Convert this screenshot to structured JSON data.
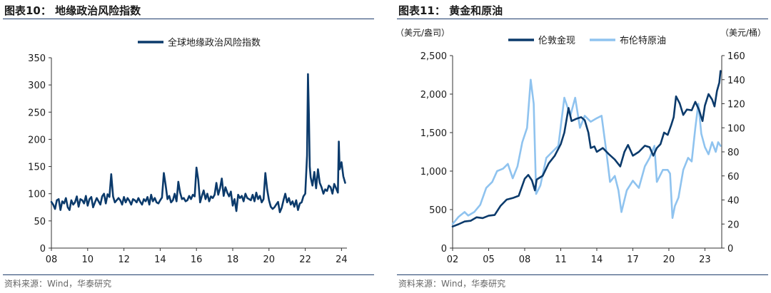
{
  "left_panel": {
    "title": "图表10：  地缘政治风险指数",
    "source": "资料来源：Wind，华泰研究"
  },
  "right_panel": {
    "title": "图表11：  黄金和原油",
    "source": "资料来源：Wind，华泰研究"
  },
  "colors": {
    "dark_blue": "#0b3a6b",
    "light_blue": "#8fc3ef",
    "rule": "#1f3d6c",
    "axis": "#333333"
  },
  "chart_data": [
    {
      "type": "line",
      "title": "",
      "xlabel": "",
      "ylabel": "",
      "xlim": [
        2008.0,
        2024.3
      ],
      "ylim": [
        0,
        350
      ],
      "x_ticks": [
        2008,
        2010,
        2012,
        2014,
        2016,
        2018,
        2020,
        2022,
        2024
      ],
      "x_tick_labels": [
        "08",
        "10",
        "12",
        "14",
        "16",
        "18",
        "20",
        "22",
        "24"
      ],
      "y_ticks": [
        0,
        50,
        100,
        150,
        200,
        250,
        300,
        350
      ],
      "y_tick_labels": [
        "0",
        "50",
        "100",
        "150",
        "200",
        "250",
        "300",
        "350"
      ],
      "grid": false,
      "legend_position": "top-center",
      "series": [
        {
          "name": "全球地缘政治风险指数",
          "color": "#0b3a6b",
          "x": [
            2008.0,
            2008.1,
            2008.2,
            2008.3,
            2008.4,
            2008.5,
            2008.6,
            2008.7,
            2008.8,
            2008.9,
            2009.0,
            2009.1,
            2009.2,
            2009.3,
            2009.4,
            2009.5,
            2009.6,
            2009.7,
            2009.8,
            2009.9,
            2010.0,
            2010.1,
            2010.2,
            2010.3,
            2010.4,
            2010.5,
            2010.6,
            2010.7,
            2010.8,
            2010.9,
            2011.0,
            2011.1,
            2011.2,
            2011.3,
            2011.4,
            2011.5,
            2011.6,
            2011.7,
            2011.8,
            2011.9,
            2012.0,
            2012.1,
            2012.2,
            2012.3,
            2012.4,
            2012.5,
            2012.6,
            2012.7,
            2012.8,
            2012.9,
            2013.0,
            2013.1,
            2013.2,
            2013.3,
            2013.4,
            2013.5,
            2013.6,
            2013.7,
            2013.8,
            2013.9,
            2014.0,
            2014.1,
            2014.2,
            2014.3,
            2014.4,
            2014.5,
            2014.6,
            2014.7,
            2014.8,
            2014.9,
            2015.0,
            2015.1,
            2015.2,
            2015.3,
            2015.4,
            2015.5,
            2015.6,
            2015.7,
            2015.8,
            2015.9,
            2016.0,
            2016.1,
            2016.2,
            2016.3,
            2016.4,
            2016.5,
            2016.6,
            2016.7,
            2016.8,
            2016.9,
            2017.0,
            2017.1,
            2017.2,
            2017.3,
            2017.4,
            2017.5,
            2017.6,
            2017.7,
            2017.8,
            2017.9,
            2018.0,
            2018.1,
            2018.2,
            2018.3,
            2018.4,
            2018.5,
            2018.6,
            2018.7,
            2018.8,
            2018.9,
            2019.0,
            2019.1,
            2019.2,
            2019.3,
            2019.4,
            2019.5,
            2019.6,
            2019.7,
            2019.8,
            2019.9,
            2020.0,
            2020.1,
            2020.2,
            2020.3,
            2020.4,
            2020.5,
            2020.6,
            2020.7,
            2020.8,
            2020.9,
            2021.0,
            2021.1,
            2021.2,
            2021.3,
            2021.4,
            2021.5,
            2021.6,
            2021.7,
            2021.8,
            2021.9,
            2022.0,
            2022.1,
            2022.15,
            2022.2,
            2022.25,
            2022.3,
            2022.4,
            2022.5,
            2022.6,
            2022.7,
            2022.8,
            2022.9,
            2023.0,
            2023.1,
            2023.2,
            2023.3,
            2023.4,
            2023.5,
            2023.6,
            2023.7,
            2023.8,
            2023.85,
            2023.9,
            2024.0,
            2024.1,
            2024.2
          ],
          "values": [
            85,
            80,
            72,
            88,
            90,
            70,
            86,
            82,
            92,
            75,
            70,
            88,
            80,
            84,
            95,
            76,
            90,
            88,
            82,
            96,
            78,
            90,
            94,
            75,
            84,
            92,
            86,
            80,
            95,
            100,
            82,
            99,
            94,
            136,
            95,
            84,
            88,
            92,
            88,
            80,
            94,
            84,
            92,
            87,
            80,
            90,
            88,
            84,
            92,
            85,
            80,
            90,
            86,
            94,
            80,
            98,
            86,
            92,
            84,
            82,
            88,
            93,
            138,
            116,
            90,
            96,
            84,
            88,
            100,
            86,
            122,
            102,
            90,
            92,
            86,
            88,
            96,
            90,
            98,
            95,
            148,
            126,
            84,
            96,
            106,
            90,
            100,
            86,
            95,
            92,
            98,
            120,
            98,
            110,
            128,
            96,
            112,
            102,
            95,
            104,
            78,
            90,
            68,
            98,
            92,
            96,
            86,
            100,
            92,
            90,
            88,
            98,
            86,
            102,
            90,
            96,
            84,
            90,
            138,
            108,
            88,
            76,
            72,
            75,
            80,
            85,
            66,
            74,
            88,
            100,
            84,
            92,
            80,
            86,
            76,
            88,
            70,
            82,
            84,
            95,
            100,
            170,
            320,
            245,
            150,
            130,
            115,
            140,
            110,
            145,
            120,
            112,
            100,
            108,
            105,
            115,
            112,
            100,
            118,
            110,
            102,
            196,
            145,
            158,
            132,
            120
          ]
        }
      ]
    },
    {
      "type": "line",
      "title": "",
      "xlabel": "",
      "ylabel": "（美元/盎司）",
      "ylabel_right": "（美元/桶）",
      "xlim": [
        2002.0,
        2024.4
      ],
      "ylim": [
        0,
        2500
      ],
      "ylim_right": [
        0,
        160
      ],
      "x_ticks": [
        2002,
        2005,
        2008,
        2011,
        2014,
        2017,
        2020,
        2023
      ],
      "x_tick_labels": [
        "02",
        "05",
        "08",
        "11",
        "14",
        "17",
        "20",
        "23"
      ],
      "y_ticks": [
        0,
        500,
        1000,
        1500,
        2000,
        2500
      ],
      "y_tick_labels": [
        "0",
        "500",
        "1,000",
        "1,500",
        "2,000",
        "2,500"
      ],
      "y_ticks_right": [
        0,
        20,
        40,
        60,
        80,
        100,
        120,
        140,
        160
      ],
      "y_tick_labels_right": [
        "0",
        "20",
        "40",
        "60",
        "80",
        "100",
        "120",
        "140",
        "160"
      ],
      "grid": false,
      "legend_position": "top-center",
      "series": [
        {
          "name": "伦敦金现",
          "axis": "left",
          "color": "#0b3a6b",
          "x": [
            2002.0,
            2002.5,
            2003.0,
            2003.5,
            2004.0,
            2004.5,
            2005.0,
            2005.5,
            2006.0,
            2006.5,
            2007.0,
            2007.5,
            2008.0,
            2008.3,
            2008.6,
            2008.85,
            2009.0,
            2009.5,
            2010.0,
            2010.5,
            2011.0,
            2011.3,
            2011.65,
            2011.9,
            2012.3,
            2012.7,
            2013.0,
            2013.3,
            2013.5,
            2013.8,
            2014.0,
            2014.5,
            2015.0,
            2015.5,
            2015.95,
            2016.3,
            2016.6,
            2017.0,
            2017.5,
            2018.0,
            2018.4,
            2018.7,
            2019.0,
            2019.3,
            2019.6,
            2019.9,
            2020.2,
            2020.4,
            2020.6,
            2020.9,
            2021.2,
            2021.5,
            2021.9,
            2022.2,
            2022.5,
            2022.8,
            2023.0,
            2023.3,
            2023.6,
            2023.8,
            2024.0,
            2024.2,
            2024.3
          ],
          "values": [
            280,
            310,
            345,
            355,
            400,
            390,
            420,
            430,
            550,
            630,
            650,
            680,
            900,
            950,
            880,
            750,
            890,
            940,
            1100,
            1200,
            1350,
            1500,
            1820,
            1650,
            1680,
            1700,
            1660,
            1500,
            1300,
            1320,
            1250,
            1300,
            1220,
            1150,
            1060,
            1250,
            1340,
            1200,
            1250,
            1330,
            1310,
            1200,
            1300,
            1350,
            1500,
            1470,
            1600,
            1700,
            1970,
            1880,
            1730,
            1800,
            1790,
            1900,
            1800,
            1650,
            1850,
            2000,
            1930,
            1840,
            2040,
            2150,
            2300
          ]
        },
        {
          "name": "布伦特原油",
          "axis": "right",
          "color": "#8fc3ef",
          "x": [
            2002.0,
            2002.5,
            2003.0,
            2003.3,
            2003.8,
            2004.3,
            2004.8,
            2005.3,
            2005.7,
            2006.2,
            2006.6,
            2007.0,
            2007.4,
            2007.8,
            2008.2,
            2008.5,
            2008.75,
            2008.95,
            2009.3,
            2009.8,
            2010.3,
            2010.8,
            2011.3,
            2011.8,
            2012.2,
            2012.6,
            2013.0,
            2013.5,
            2014.0,
            2014.4,
            2014.8,
            2015.1,
            2015.5,
            2015.8,
            2016.05,
            2016.5,
            2017.0,
            2017.5,
            2018.0,
            2018.4,
            2018.8,
            2019.0,
            2019.5,
            2019.9,
            2020.1,
            2020.3,
            2020.5,
            2020.8,
            2021.2,
            2021.6,
            2021.9,
            2022.2,
            2022.45,
            2022.7,
            2023.0,
            2023.3,
            2023.6,
            2023.9,
            2024.1,
            2024.3
          ],
          "values": [
            20,
            26,
            30,
            27,
            30,
            36,
            50,
            55,
            64,
            66,
            70,
            58,
            68,
            88,
            100,
            140,
            120,
            45,
            52,
            75,
            80,
            85,
            125,
            110,
            125,
            100,
            110,
            105,
            108,
            110,
            80,
            55,
            60,
            48,
            30,
            48,
            56,
            50,
            68,
            75,
            85,
            55,
            65,
            65,
            62,
            25,
            35,
            42,
            65,
            75,
            72,
            100,
            120,
            95,
            84,
            78,
            88,
            80,
            88,
            85
          ]
        }
      ]
    }
  ]
}
